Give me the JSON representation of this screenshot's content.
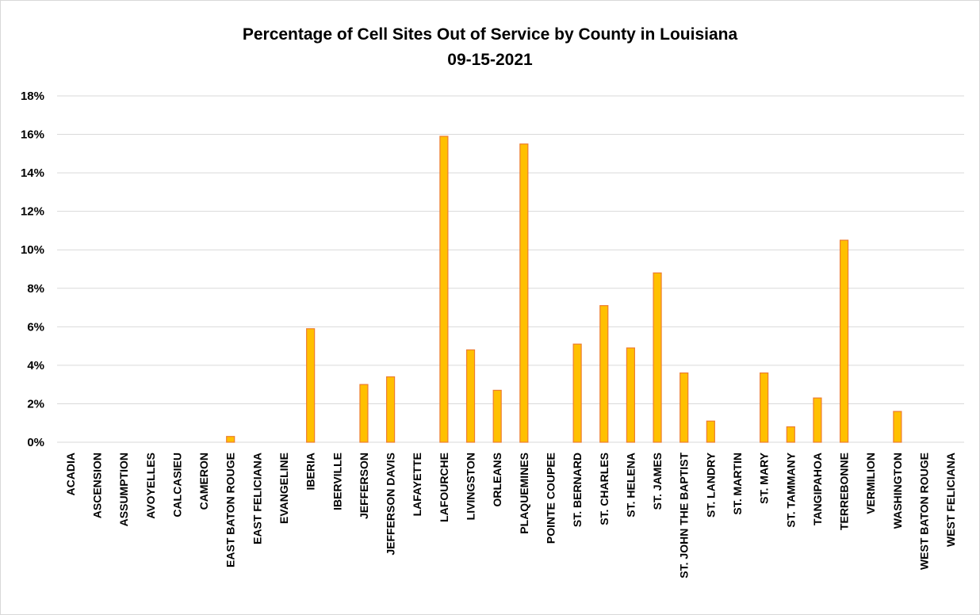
{
  "chart_data": {
    "type": "bar",
    "title": "Percentage of Cell Sites Out of Service by County in Louisiana",
    "subtitle": "09-15-2021",
    "xlabel": "",
    "ylabel": "",
    "ylim": [
      0,
      18
    ],
    "y_tick_values": [
      0,
      2,
      4,
      6,
      8,
      10,
      12,
      14,
      16,
      18
    ],
    "y_tick_labels": [
      "0%",
      "2%",
      "4%",
      "6%",
      "8%",
      "10%",
      "12%",
      "14%",
      "16%",
      "18%"
    ],
    "grid": true,
    "legend": "none",
    "colors": {
      "bar_fill": "#FFC000",
      "bar_stroke": "#ED7D31",
      "grid": "#d9d9d9"
    },
    "categories": [
      "ACADIA",
      "ASCENSION",
      "ASSUMPTION",
      "AVOYELLES",
      "CALCASIEU",
      "CAMERON",
      "EAST BATON ROUGE",
      "EAST FELICIANA",
      "EVANGELINE",
      "IBERIA",
      "IBERVILLE",
      "JEFFERSON",
      "JEFFERSON DAVIS",
      "LAFAYETTE",
      "LAFOURCHE",
      "LIVINGSTON",
      "ORLEANS",
      "PLAQUEMINES",
      "POINTE COUPEE",
      "ST. BERNARD",
      "ST. CHARLES",
      "ST. HELENA",
      "ST. JAMES",
      "ST. JOHN THE BAPTIST",
      "ST. LANDRY",
      "ST. MARTIN",
      "ST. MARY",
      "ST. TAMMANY",
      "TANGIPAHOA",
      "TERREBONNE",
      "VERMILION",
      "WASHINGTON",
      "WEST BATON ROUGE",
      "WEST FELICIANA"
    ],
    "values": [
      0,
      0,
      0,
      0,
      0,
      0,
      0.3,
      0,
      0,
      5.9,
      0,
      3.0,
      3.4,
      0,
      15.9,
      4.8,
      2.7,
      15.5,
      0,
      5.1,
      7.1,
      4.9,
      8.8,
      3.6,
      1.1,
      0,
      3.6,
      0.8,
      2.3,
      10.5,
      0,
      1.6,
      0,
      0
    ]
  }
}
